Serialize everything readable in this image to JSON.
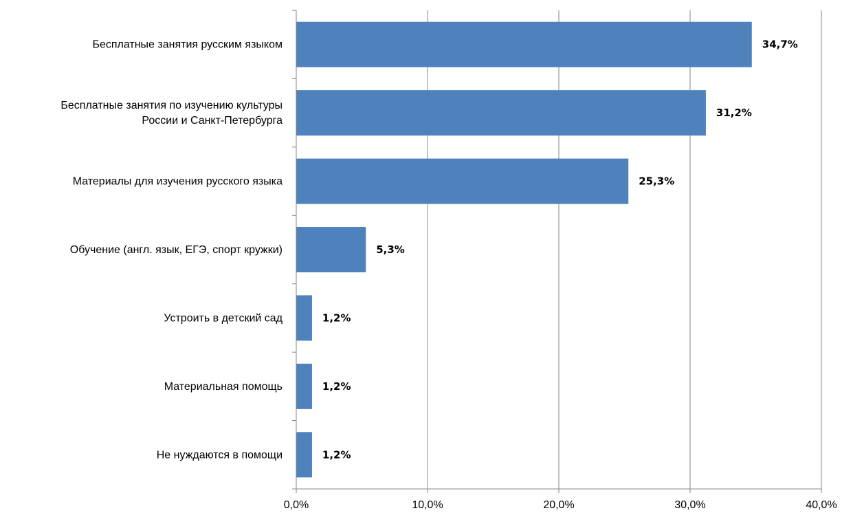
{
  "chart_data": {
    "type": "bar",
    "orientation": "horizontal",
    "categories": [
      [
        "Бесплатные занятия русским языком"
      ],
      [
        "Бесплатные занятия по изучению культуры",
        "России и Санкт-Петербурга"
      ],
      [
        "Материалы для изучения русского языка"
      ],
      [
        "Обучение (англ. язык, ЕГЭ, спорт кружки)"
      ],
      [
        "Устроить в детский сад"
      ],
      [
        "Материальная помощь"
      ],
      [
        "Не нуждаются в помощи"
      ]
    ],
    "values": [
      34.7,
      31.2,
      25.3,
      5.3,
      1.2,
      1.2,
      1.2
    ],
    "data_labels": [
      "34,7%",
      "31,2%",
      "25,3%",
      "5,3%",
      "1,2%",
      "1,2%",
      "1,2%"
    ],
    "x_ticks": [
      0,
      10,
      20,
      30,
      40
    ],
    "x_tick_labels": [
      "0,0%",
      "10,0%",
      "20,0%",
      "30,0%",
      "40,0%"
    ],
    "xlim": [
      0,
      40
    ],
    "title": "",
    "xlabel": "",
    "ylabel": "",
    "grid": "vertical",
    "legend": "none",
    "bar_color": "#4f81bd",
    "grid_color": "#868686",
    "axis_color": "#868686"
  }
}
